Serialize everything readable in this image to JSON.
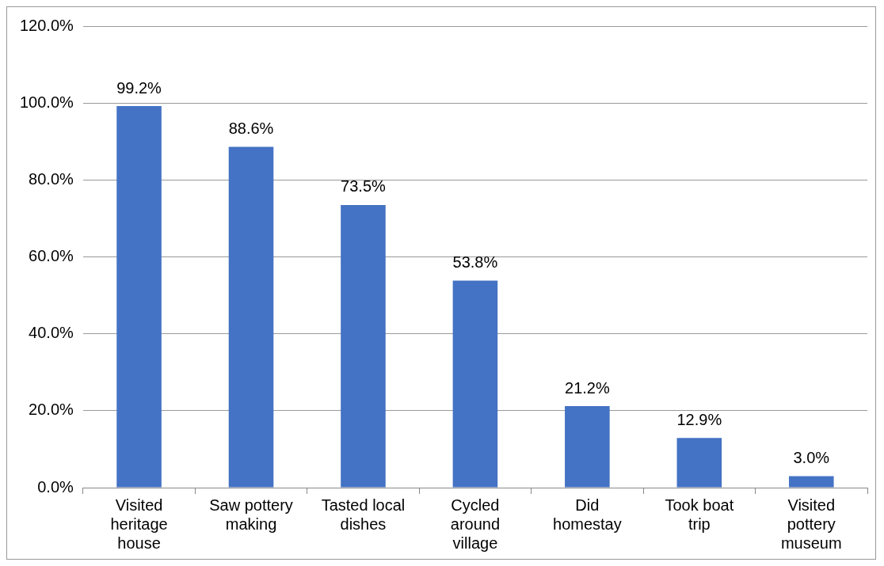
{
  "chart_data": {
    "type": "bar",
    "categories": [
      "Visited heritage house",
      "Saw pottery making",
      "Tasted local dishes",
      "Cycled around village",
      "Did homestay",
      "Took boat trip",
      "Visited pottery museum"
    ],
    "values": [
      99.2,
      88.6,
      73.5,
      53.8,
      21.2,
      12.9,
      3.0
    ],
    "value_labels": [
      "99.2%",
      "88.6%",
      "73.5%",
      "53.8%",
      "21.2%",
      "12.9%",
      "3.0%"
    ],
    "color": "#4472c4",
    "ylim": [
      0,
      120
    ],
    "yticks": [
      {
        "value": 0,
        "label": "0.0%"
      },
      {
        "value": 20,
        "label": "20.0%"
      },
      {
        "value": 40,
        "label": "40.0%"
      },
      {
        "value": 60,
        "label": "60.0%"
      },
      {
        "value": 80,
        "label": "80.0%"
      },
      {
        "value": 100,
        "label": "100.0%"
      },
      {
        "value": 120,
        "label": "120.0%"
      }
    ],
    "grid": "y"
  }
}
